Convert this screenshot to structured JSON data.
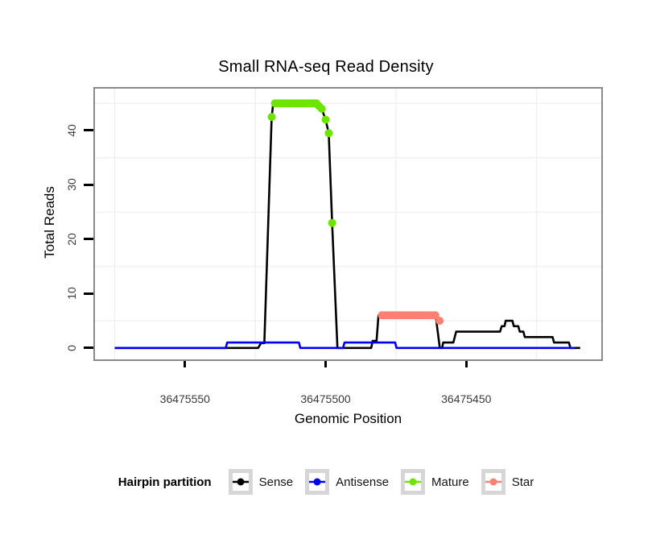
{
  "title": "Small RNA-seq Read Density",
  "axes": {
    "x_label": "Genomic Position",
    "y_label": "Total Reads",
    "x_ticks": [
      {
        "value": 36475550,
        "label": "36475550"
      },
      {
        "value": 36475500,
        "label": "36475500"
      },
      {
        "value": 36475450,
        "label": "36475450"
      }
    ],
    "y_ticks": [
      {
        "value": 0,
        "label": "0"
      },
      {
        "value": 10,
        "label": "10"
      },
      {
        "value": 20,
        "label": "20"
      },
      {
        "value": 30,
        "label": "30"
      },
      {
        "value": 40,
        "label": "40"
      }
    ],
    "x_minor_gridlines": [
      36475575,
      36475525,
      36475475,
      36475425
    ],
    "y_minor_gridlines": [
      5,
      15,
      25,
      35,
      45
    ]
  },
  "legend": {
    "title": "Hairpin partition",
    "items": [
      {
        "id": "sense",
        "label": "Sense",
        "color": "#000000"
      },
      {
        "id": "antisense",
        "label": "Antisense",
        "color": "#0000EE"
      },
      {
        "id": "mature",
        "label": "Mature",
        "color": "#6CE600"
      },
      {
        "id": "star",
        "label": "Star",
        "color": "#FA8072"
      }
    ]
  },
  "colors": {
    "gridline": "#f0f0f0",
    "plot_border": "#8a8a8a",
    "tick": "#000000",
    "axis_text": "#3a3a3a",
    "legend_box_border": "#d6d6d6"
  },
  "chart_data": {
    "type": "line",
    "title": "Small RNA-seq Read Density",
    "xlabel": "Genomic Position",
    "ylabel": "Total Reads",
    "xlim": [
      36475582,
      36475402
    ],
    "ylim": [
      -2.1,
      47.7
    ],
    "x_reversed": true,
    "grid": "minor",
    "legend_position": "bottom",
    "series": [
      {
        "name": "Sense",
        "style": "line",
        "color": "#000000",
        "width": 2.6,
        "points": [
          [
            36475575,
            0
          ],
          [
            36475524,
            0
          ],
          [
            36475523,
            0.9
          ],
          [
            36475521.8,
            0.9
          ],
          [
            36475519.2,
            42.5
          ],
          [
            36475518.6,
            45
          ],
          [
            36475503.5,
            45
          ],
          [
            36475502.4,
            44.5
          ],
          [
            36475501.4,
            44
          ],
          [
            36475500,
            42
          ],
          [
            36475498.9,
            39.5
          ],
          [
            36475497.7,
            23
          ],
          [
            36475495.8,
            0
          ],
          [
            36475483.8,
            0
          ],
          [
            36475483.3,
            1.3
          ],
          [
            36475481.9,
            1.3
          ],
          [
            36475481.2,
            6
          ],
          [
            36475460.9,
            6
          ],
          [
            36475459.4,
            0
          ],
          [
            36475458.6,
            0
          ],
          [
            36475458.2,
            1
          ],
          [
            36475454.6,
            1
          ],
          [
            36475453.6,
            3
          ],
          [
            36475438,
            3
          ],
          [
            36475437.4,
            4
          ],
          [
            36475436.4,
            4
          ],
          [
            36475436,
            5
          ],
          [
            36475433.6,
            5
          ],
          [
            36475433.1,
            4
          ],
          [
            36475431.5,
            4
          ],
          [
            36475431,
            3
          ],
          [
            36475429.7,
            3
          ],
          [
            36475429.2,
            2
          ],
          [
            36475419.3,
            2
          ],
          [
            36475418.8,
            1
          ],
          [
            36475413.5,
            1
          ],
          [
            36475413,
            0
          ],
          [
            36475409.5,
            0
          ]
        ]
      },
      {
        "name": "Antisense",
        "style": "line",
        "color": "#0000EE",
        "width": 2.6,
        "points": [
          [
            36475575,
            0
          ],
          [
            36475535.5,
            0
          ],
          [
            36475535,
            1
          ],
          [
            36475509.5,
            1
          ],
          [
            36475509,
            0
          ],
          [
            36475493.8,
            0
          ],
          [
            36475493.3,
            1
          ],
          [
            36475475.3,
            1
          ],
          [
            36475474.8,
            0
          ],
          [
            36475411.5,
            0
          ]
        ]
      },
      {
        "name": "Mature",
        "style": "points",
        "color": "#6CE600",
        "radius": 5,
        "points": [
          [
            36475519.2,
            42.5
          ],
          [
            36475518,
            45
          ],
          [
            36475517,
            45
          ],
          [
            36475516,
            45
          ],
          [
            36475515,
            45
          ],
          [
            36475514,
            45
          ],
          [
            36475513,
            45
          ],
          [
            36475512,
            45
          ],
          [
            36475511,
            45
          ],
          [
            36475510,
            45
          ],
          [
            36475509,
            45
          ],
          [
            36475508,
            45
          ],
          [
            36475507,
            45
          ],
          [
            36475506,
            45
          ],
          [
            36475505,
            45
          ],
          [
            36475504,
            45
          ],
          [
            36475503.3,
            45
          ],
          [
            36475502.4,
            44.5
          ],
          [
            36475501.4,
            44
          ],
          [
            36475500,
            42
          ],
          [
            36475498.9,
            39.5
          ],
          [
            36475497.7,
            23
          ]
        ]
      },
      {
        "name": "Star",
        "style": "points",
        "color": "#FA8072",
        "radius": 5,
        "points": [
          [
            36475480,
            6
          ],
          [
            36475479,
            6
          ],
          [
            36475478,
            6
          ],
          [
            36475477,
            6
          ],
          [
            36475476,
            6
          ],
          [
            36475475,
            6
          ],
          [
            36475474,
            6
          ],
          [
            36475473,
            6
          ],
          [
            36475472,
            6
          ],
          [
            36475471,
            6
          ],
          [
            36475470,
            6
          ],
          [
            36475469,
            6
          ],
          [
            36475468,
            6
          ],
          [
            36475467,
            6
          ],
          [
            36475466,
            6
          ],
          [
            36475465,
            6
          ],
          [
            36475464,
            6
          ],
          [
            36475463,
            6
          ],
          [
            36475462,
            6
          ],
          [
            36475461,
            6
          ],
          [
            36475459.5,
            5
          ]
        ]
      }
    ]
  }
}
